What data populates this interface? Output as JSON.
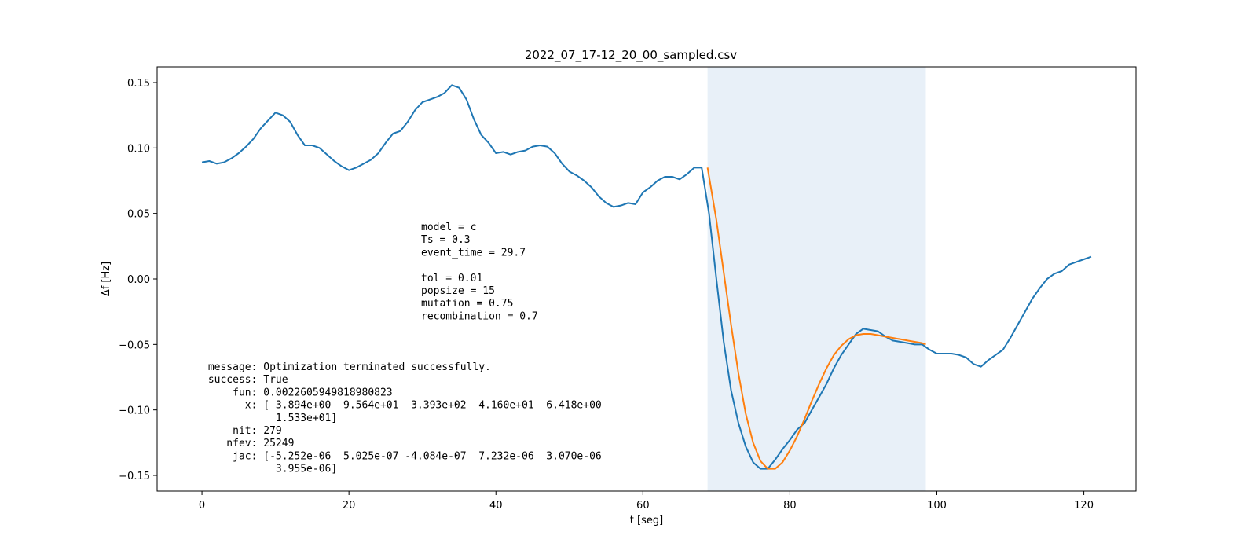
{
  "chart_data": {
    "type": "line",
    "title": "2022_07_17-12_20_00_sampled.csv",
    "xlabel": "t [seg]",
    "ylabel": "Δf [Hz]",
    "xlim": [
      -6.1,
      127.1
    ],
    "ylim": [
      -0.162,
      0.162
    ],
    "xticks": [
      0,
      20,
      40,
      60,
      80,
      100,
      120
    ],
    "xtick_labels": [
      "0",
      "20",
      "40",
      "60",
      "80",
      "100",
      "120"
    ],
    "yticks": [
      0.15,
      0.1,
      0.05,
      0.0,
      -0.05,
      -0.1,
      -0.15
    ],
    "ytick_labels": [
      "0.15",
      "0.10",
      "0.05",
      "0.00",
      "−0.05",
      "−0.10",
      "−0.15"
    ],
    "grid": false,
    "legend": "none",
    "shaded_region": {
      "x0": 68.8,
      "x1": 98.5,
      "color": "#e8f0f8"
    },
    "series": [
      {
        "color": "#1f77b4",
        "x": [
          0,
          1,
          2,
          3,
          4,
          5,
          6,
          7,
          8,
          9,
          10,
          11,
          12,
          13,
          14,
          15,
          16,
          17,
          18,
          19,
          20,
          21,
          22,
          23,
          24,
          25,
          26,
          27,
          28,
          29,
          30,
          31,
          32,
          33,
          34,
          35,
          36,
          37,
          38,
          39,
          40,
          41,
          42,
          43,
          44,
          45,
          46,
          47,
          48,
          49,
          50,
          51,
          52,
          53,
          54,
          55,
          56,
          57,
          58,
          59,
          60,
          61,
          62,
          63,
          64,
          65,
          66,
          67,
          68,
          69,
          70,
          71,
          72,
          73,
          74,
          75,
          76,
          77,
          78,
          79,
          80,
          81,
          82,
          83,
          84,
          85,
          86,
          87,
          88,
          89,
          90,
          91,
          92,
          93,
          94,
          95,
          96,
          97,
          98,
          99,
          100,
          101,
          102,
          103,
          104,
          105,
          106,
          107,
          108,
          109,
          110,
          111,
          112,
          113,
          114,
          115,
          116,
          117,
          118,
          119,
          120,
          121
        ],
        "y": [
          0.089,
          0.09,
          0.088,
          0.089,
          0.092,
          0.096,
          0.101,
          0.107,
          0.115,
          0.121,
          0.127,
          0.125,
          0.12,
          0.11,
          0.102,
          0.102,
          0.1,
          0.095,
          0.09,
          0.086,
          0.083,
          0.085,
          0.088,
          0.091,
          0.096,
          0.104,
          0.111,
          0.113,
          0.12,
          0.129,
          0.135,
          0.137,
          0.139,
          0.142,
          0.148,
          0.146,
          0.137,
          0.122,
          0.11,
          0.104,
          0.096,
          0.097,
          0.095,
          0.097,
          0.098,
          0.101,
          0.102,
          0.101,
          0.096,
          0.088,
          0.082,
          0.079,
          0.075,
          0.07,
          0.063,
          0.058,
          0.055,
          0.056,
          0.058,
          0.057,
          0.066,
          0.07,
          0.075,
          0.078,
          0.078,
          0.076,
          0.08,
          0.085,
          0.085,
          0.05,
          0.0,
          -0.048,
          -0.085,
          -0.11,
          -0.128,
          -0.14,
          -0.145,
          -0.145,
          -0.138,
          -0.13,
          -0.123,
          -0.115,
          -0.11,
          -0.1,
          -0.09,
          -0.08,
          -0.068,
          -0.058,
          -0.05,
          -0.042,
          -0.038,
          -0.039,
          -0.04,
          -0.044,
          -0.047,
          -0.048,
          -0.049,
          -0.05,
          -0.05,
          -0.054,
          -0.057,
          -0.057,
          -0.057,
          -0.058,
          -0.06,
          -0.065,
          -0.067,
          -0.062,
          -0.058,
          -0.054,
          -0.045,
          -0.035,
          -0.025,
          -0.015,
          -0.007,
          0.0,
          0.004,
          0.006,
          0.011,
          0.013,
          0.015,
          0.017
        ]
      },
      {
        "color": "#ff7f0e",
        "x": [
          68.8,
          70,
          71,
          72,
          73,
          74,
          75,
          76,
          77,
          78,
          79,
          80,
          81,
          82,
          83,
          84,
          85,
          86,
          87,
          88,
          89,
          90,
          91,
          92,
          93,
          94,
          95,
          96,
          97,
          98,
          98.5
        ],
        "y": [
          0.085,
          0.045,
          0.005,
          -0.035,
          -0.072,
          -0.103,
          -0.125,
          -0.139,
          -0.145,
          -0.145,
          -0.14,
          -0.131,
          -0.12,
          -0.107,
          -0.093,
          -0.08,
          -0.068,
          -0.058,
          -0.051,
          -0.046,
          -0.043,
          -0.042,
          -0.042,
          -0.043,
          -0.044,
          -0.045,
          -0.046,
          -0.047,
          -0.048,
          -0.049,
          -0.05
        ]
      }
    ]
  },
  "annotations": {
    "params": [
      "model = c",
      "Ts = 0.3",
      "event_time = 29.7",
      "",
      "tol = 0.01",
      "popsize = 15",
      "mutation = 0.75",
      "recombination = 0.7"
    ],
    "result": [
      " message: Optimization terminated successfully.",
      " success: True",
      "     fun: 0.0022605949818980823",
      "       x: [ 3.894e+00  9.564e+01  3.393e+02  4.160e+01  6.418e+00",
      "            1.533e+01]",
      "     nit: 279",
      "    nfev: 25249",
      "     jac: [-5.252e-06  5.025e-07 -4.084e-07  7.232e-06  3.070e-06",
      "            3.955e-06]"
    ]
  }
}
